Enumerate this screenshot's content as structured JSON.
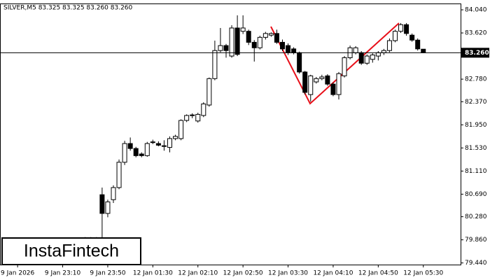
{
  "chart_data": {
    "type": "candlestick",
    "title": "SILVER,M5  83.325 83.325 83.260 83.260",
    "categories": [
      null,
      null,
      null,
      "9 Jan 2026",
      null,
      null,
      null,
      null,
      null,
      null,
      null,
      "9 Jan 23:10",
      null,
      null,
      null,
      null,
      null,
      null,
      null,
      "9 Jan 23:50",
      null,
      null,
      null,
      null,
      null,
      null,
      null,
      "12 Jan 01:30",
      null,
      null,
      null,
      null,
      null,
      null,
      null,
      "12 Jan 02:10",
      null,
      null,
      null,
      null,
      null,
      null,
      null,
      "12 Jan 02:50",
      null,
      null,
      null,
      null,
      null,
      null,
      null,
      "12 Jan 03:30",
      null,
      null,
      null,
      null,
      null,
      null,
      null,
      "12 Jan 04:10",
      null,
      null,
      null,
      null,
      null,
      null,
      null,
      "12 Jan 04:50",
      null,
      null,
      null,
      null,
      null,
      null,
      null,
      "12 Jan 05:30"
    ],
    "open": [
      null,
      null,
      null,
      null,
      null,
      null,
      null,
      null,
      null,
      null,
      null,
      null,
      null,
      null,
      null,
      79.89,
      79.89,
      79.89,
      80.68,
      80.34,
      80.59,
      80.81,
      81.27,
      81.61,
      81.52,
      81.42,
      81.39,
      81.63,
      81.61,
      81.57,
      81.54,
      81.7,
      81.7,
      82.03,
      82.12,
      82.02,
      82.12,
      82.31,
      82.79,
      83.3,
      83.39,
      83.2,
      83.71,
      83.65,
      83.65,
      83.45,
      83.35,
      83.54,
      83.58,
      83.61,
      83.45,
      83.39,
      83.33,
      83.26,
      82.91,
      82.5,
      82.73,
      82.79,
      82.84,
      82.69,
      82.5,
      82.84,
      83.17,
      83.26,
      83.26,
      83.07,
      83.14,
      83.2,
      83.26,
      83.3,
      83.48,
      83.65,
      83.77,
      83.58,
      83.49,
      83.325
    ],
    "high": [
      null,
      null,
      null,
      null,
      null,
      null,
      null,
      null,
      null,
      null,
      null,
      null,
      null,
      null,
      null,
      79.91,
      79.91,
      79.91,
      80.81,
      80.59,
      80.85,
      81.32,
      81.66,
      81.72,
      81.55,
      81.45,
      81.64,
      81.68,
      81.65,
      81.67,
      81.74,
      81.77,
      82.05,
      82.14,
      82.16,
      82.17,
      82.36,
      82.81,
      83.48,
      83.71,
      83.42,
      83.76,
      83.94,
      83.94,
      83.68,
      83.49,
      83.57,
      83.64,
      83.63,
      83.68,
      83.5,
      83.43,
      83.36,
      83.28,
      82.93,
      82.86,
      82.82,
      82.86,
      82.87,
      82.72,
      82.91,
      83.2,
      83.39,
      83.38,
      83.29,
      83.23,
      83.25,
      83.29,
      83.33,
      83.52,
      83.68,
      83.8,
      83.8,
      83.61,
      83.52,
      83.325
    ],
    "low": [
      null,
      null,
      null,
      null,
      null,
      null,
      null,
      null,
      null,
      null,
      null,
      null,
      null,
      null,
      null,
      79.87,
      79.87,
      79.87,
      79.89,
      80.27,
      80.53,
      80.78,
      81.22,
      81.48,
      81.36,
      81.36,
      81.37,
      81.6,
      81.56,
      81.48,
      81.45,
      81.67,
      81.67,
      82.0,
      82.07,
      81.99,
      82.09,
      82.28,
      82.76,
      83.27,
      83.17,
      83.17,
      83.2,
      83.6,
      83.4,
      83.1,
      83.32,
      83.5,
      83.55,
      83.42,
      83.29,
      83.22,
      83.23,
      82.88,
      82.5,
      82.37,
      82.7,
      82.76,
      82.66,
      82.47,
      82.41,
      82.81,
      83.14,
      83.23,
      83.04,
      83.04,
      83.08,
      83.12,
      83.22,
      83.27,
      83.45,
      83.62,
      83.57,
      83.46,
      83.3,
      83.26
    ],
    "close": [
      null,
      null,
      null,
      null,
      null,
      null,
      null,
      null,
      null,
      null,
      null,
      null,
      null,
      null,
      null,
      79.89,
      79.89,
      79.89,
      80.34,
      80.55,
      80.81,
      81.27,
      81.61,
      81.52,
      81.39,
      81.39,
      81.61,
      81.64,
      81.58,
      81.57,
      81.7,
      81.74,
      82.03,
      82.12,
      82.13,
      82.14,
      82.33,
      82.79,
      83.3,
      83.39,
      83.3,
      83.71,
      83.23,
      83.71,
      83.45,
      83.35,
      83.54,
      83.61,
      83.61,
      83.45,
      83.33,
      83.26,
      83.26,
      82.91,
      82.54,
      82.84,
      82.79,
      82.82,
      82.69,
      82.5,
      82.88,
      83.17,
      83.35,
      83.35,
      83.07,
      83.2,
      83.22,
      83.26,
      83.3,
      83.48,
      83.65,
      83.77,
      83.61,
      83.49,
      83.33,
      83.26
    ],
    "up_color": "#ffffff",
    "down_color": "#000000",
    "outline_color": "#000000",
    "ylim": [
      79.41,
      84.155
    ],
    "yticks": [
      {
        "value": 79.44,
        "label": "79.440"
      },
      {
        "value": 79.86,
        "label": "79.860"
      },
      {
        "value": 80.28,
        "label": "80.280"
      },
      {
        "value": 80.69,
        "label": "80.690"
      },
      {
        "value": 81.11,
        "label": "81.110"
      },
      {
        "value": 81.53,
        "label": "81.530"
      },
      {
        "value": 81.95,
        "label": "81.950"
      },
      {
        "value": 82.37,
        "label": "82.370"
      },
      {
        "value": 82.78,
        "label": "82.780"
      },
      {
        "value": 83.62,
        "label": "83.620"
      },
      {
        "value": 84.04,
        "label": "84.040"
      }
    ],
    "price_line": {
      "value": 83.26,
      "label": "83.260"
    }
  },
  "logo": "InstaFintech"
}
